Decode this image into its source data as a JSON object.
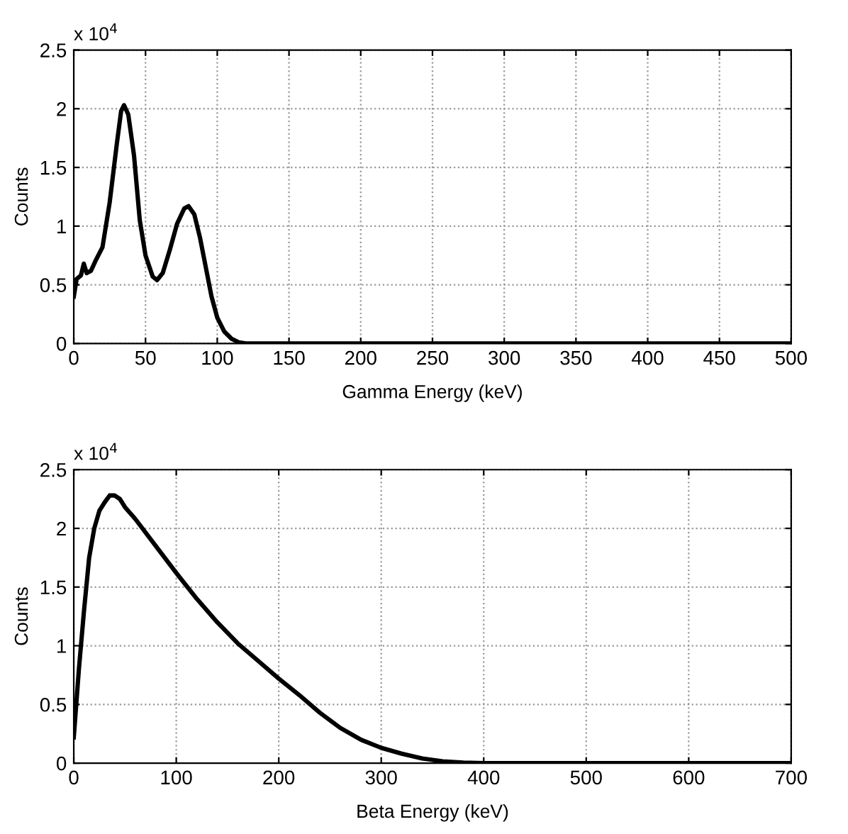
{
  "chart_data": [
    {
      "type": "line",
      "xlabel": "Gamma Energy (keV)",
      "ylabel": "Counts",
      "annotations": [
        "x 10$^{4}$"
      ],
      "xlim": [
        0,
        500
      ],
      "xticks": [
        0,
        50,
        100,
        150,
        200,
        250,
        300,
        350,
        400,
        450,
        500
      ],
      "ylim": [
        0,
        2.5
      ],
      "yticks": [
        0,
        0.5,
        1,
        1.5,
        2,
        2.5
      ],
      "grid": true,
      "line_style": "solid",
      "marker": "none",
      "series": [
        {
          "color": "#000000",
          "x": [
            0,
            2,
            5,
            7,
            9,
            12,
            15,
            20,
            25,
            30,
            33,
            35,
            38,
            42,
            46,
            50,
            55,
            58,
            62,
            67,
            72,
            77,
            80,
            84,
            88,
            92,
            96,
            100,
            105,
            110,
            115,
            120,
            200,
            300,
            400,
            500
          ],
          "values": [
            0.4,
            0.55,
            0.58,
            0.68,
            0.6,
            0.62,
            0.7,
            0.82,
            1.2,
            1.7,
            1.98,
            2.03,
            1.95,
            1.6,
            1.05,
            0.75,
            0.57,
            0.54,
            0.6,
            0.8,
            1.02,
            1.15,
            1.17,
            1.1,
            0.9,
            0.65,
            0.4,
            0.22,
            0.1,
            0.04,
            0.01,
            0,
            0,
            0,
            0,
            0
          ]
        }
      ]
    },
    {
      "type": "line",
      "xlabel": "Beta Energy (keV)",
      "ylabel": "Counts",
      "annotations": [
        "x 10$^{4}$"
      ],
      "xlim": [
        0,
        700
      ],
      "xticks": [
        0,
        100,
        200,
        300,
        400,
        500,
        600,
        700
      ],
      "ylim": [
        0,
        2.5
      ],
      "yticks": [
        0,
        0.5,
        1,
        1.5,
        2,
        2.5
      ],
      "grid": true,
      "line_style": "solid",
      "marker": "none",
      "series": [
        {
          "color": "#000000",
          "x": [
            0,
            5,
            10,
            15,
            20,
            25,
            30,
            35,
            40,
            45,
            50,
            60,
            80,
            100,
            120,
            140,
            160,
            180,
            200,
            220,
            240,
            260,
            280,
            300,
            320,
            340,
            360,
            380,
            400,
            500,
            600,
            700
          ],
          "values": [
            0.22,
            0.8,
            1.3,
            1.75,
            2.0,
            2.15,
            2.22,
            2.28,
            2.28,
            2.25,
            2.18,
            2.08,
            1.85,
            1.62,
            1.4,
            1.2,
            1.02,
            0.87,
            0.72,
            0.58,
            0.43,
            0.3,
            0.2,
            0.13,
            0.08,
            0.04,
            0.015,
            0.005,
            0,
            0,
            0,
            0
          ]
        }
      ]
    }
  ]
}
